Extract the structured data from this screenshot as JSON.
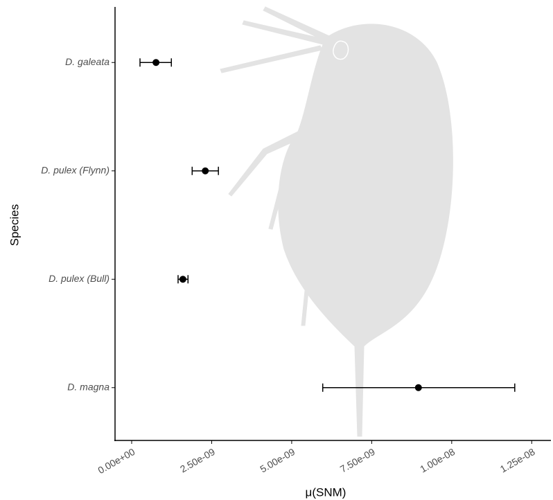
{
  "chart_data": {
    "type": "point",
    "x_label": "μ(SNM)",
    "y_label": "Species",
    "categories": [
      "D. galeata",
      "D. pulex (Flynn)",
      "D. pulex (Bull)",
      "D. magna"
    ],
    "values": [
      7.6e-10,
      2.3e-09,
      1.6e-09,
      8.96e-09
    ],
    "lower": [
      2.6e-10,
      1.89e-09,
      1.45e-09,
      5.97e-09
    ],
    "upper": [
      1.24e-09,
      2.71e-09,
      1.76e-09,
      1.197e-08
    ],
    "color": "#000000",
    "xlim": [
      -5.2e-10,
      1.31e-08
    ],
    "xticks": [
      {
        "value": 0,
        "label": "0.00e+00"
      },
      {
        "value": 2.5e-09,
        "label": "2.50e-09"
      },
      {
        "value": 5e-09,
        "label": "5.00e-09"
      },
      {
        "value": 7.5e-09,
        "label": "7.50e-09"
      },
      {
        "value": 1e-08,
        "label": "1.00e-08"
      },
      {
        "value": 1.25e-08,
        "label": "1.25e-08"
      }
    ]
  }
}
